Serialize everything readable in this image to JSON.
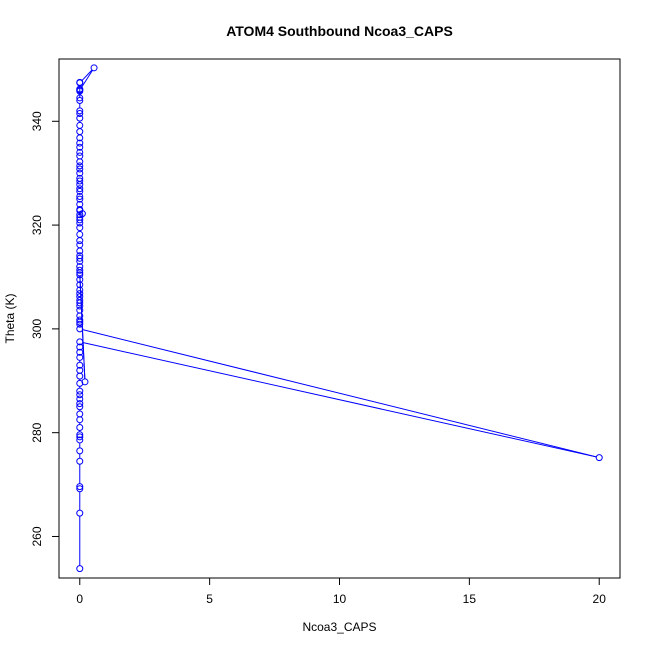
{
  "chart_data": {
    "type": "line",
    "title": "ATOM4 Southbound Ncoa3_CAPS",
    "xlabel": "Ncoa3_CAPS",
    "ylabel": "Theta (K)",
    "xlim": [
      -0.8,
      20.8
    ],
    "ylim": [
      252.0,
      352.0
    ],
    "x_ticks": [
      0,
      5,
      10,
      15,
      20
    ],
    "y_ticks": [
      260,
      280,
      300,
      320,
      340
    ],
    "grid": false,
    "legend": "none",
    "series_color": "#0000ff",
    "series": [
      {
        "x": [
          0.0,
          0.0,
          0.0,
          0.0,
          0.0,
          0.0,
          0.0,
          0.0,
          0.0,
          0.0,
          0.0,
          0.0,
          0.0,
          0.0,
          0.0,
          0.0,
          0.0,
          0.0,
          0.0,
          0.0,
          0.0,
          0.0,
          0.0,
          0.0,
          0.0,
          20.0,
          0.0,
          0.0,
          0.0,
          0.0,
          0.0,
          0.0,
          0.0,
          0.0,
          0.0,
          0.0,
          0.0,
          0.0,
          0.0,
          0.0,
          0.0,
          0.2,
          0.0,
          0.0,
          0.0,
          0.0,
          0.0,
          0.0,
          0.0,
          0.0,
          0.0,
          0.0,
          0.0,
          0.0,
          0.0,
          0.0,
          0.0,
          0.0,
          0.1,
          0.0,
          0.0,
          0.0,
          0.0,
          0.0,
          0.0,
          0.0,
          0.0,
          0.0,
          0.0,
          0.0,
          0.0,
          0.0,
          0.0,
          0.0,
          0.0,
          0.0,
          0.0,
          0.0,
          0.0,
          0.0,
          0.0,
          0.0,
          0.0,
          0.0,
          0.0,
          0.0,
          0.55,
          0.0,
          0.0,
          0.0
        ],
        "y": [
          253.8,
          264.5,
          269.2,
          269.6,
          274.5,
          276.5,
          278.6,
          279.2,
          279.6,
          281.0,
          282.5,
          283.6,
          285.0,
          285.6,
          286.5,
          287.3,
          288.0,
          289.5,
          290.9,
          292.0,
          293.0,
          294.5,
          295.5,
          296.5,
          297.5,
          275.2,
          300.0,
          300.9,
          301.3,
          301.7,
          302.5,
          303.6,
          304.4,
          305.0,
          305.5,
          306.2,
          306.8,
          307.5,
          308.5,
          309.5,
          310.4,
          289.8,
          310.8,
          311.3,
          312.0,
          313.0,
          313.6,
          314.1,
          315.0,
          316.2,
          317.0,
          318.2,
          319.5,
          320.4,
          321.0,
          321.5,
          322.0,
          322.8,
          322.2,
          323.0,
          324.0,
          325.0,
          325.5,
          326.5,
          327.0,
          327.8,
          328.5,
          329.0,
          330.0,
          330.8,
          331.4,
          332.2,
          333.3,
          334.0,
          335.0,
          335.8,
          336.8,
          338.0,
          339.2,
          340.6,
          341.5,
          342.0,
          344.0,
          345.8,
          346.2,
          347.4,
          350.3,
          346.0,
          347.5,
          344.5
        ]
      }
    ]
  }
}
